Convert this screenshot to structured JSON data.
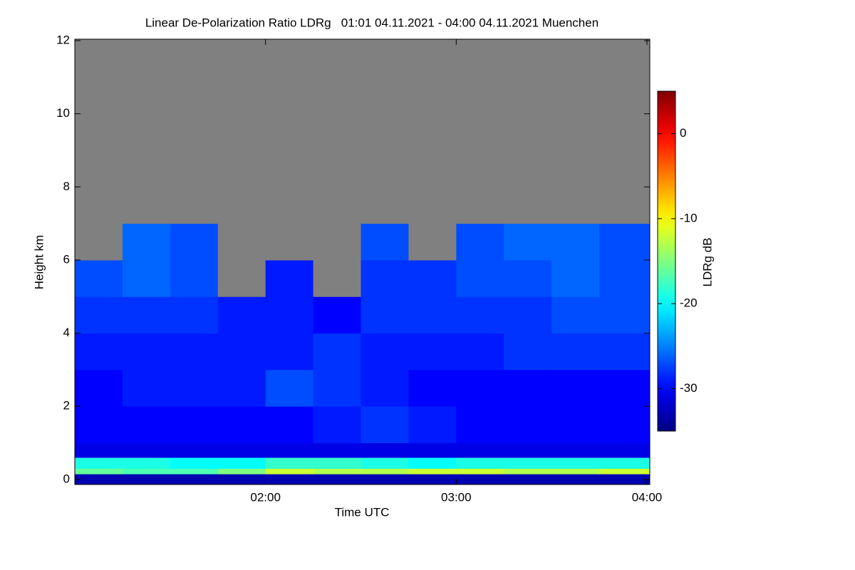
{
  "chart_data": {
    "type": "heatmap",
    "title": "Linear De-Polarization Ratio LDRg   01:01 04.11.2021 - 04:00 04.11.2021 Muenchen",
    "x_label": "Time UTC",
    "y_label": "Height km",
    "colorbar_label": "LDRg dB",
    "colormap": "jet",
    "missing_color": "#808080",
    "xlim": [
      1.0,
      4.015
    ],
    "ylim": [
      -0.14,
      12.04
    ],
    "clim": [
      -35,
      5
    ],
    "xticks": [
      {
        "value": 2,
        "label": "02:00"
      },
      {
        "value": 3,
        "label": "03:00"
      },
      {
        "value": 4,
        "label": "04:00"
      }
    ],
    "yticks": [
      0,
      2,
      4,
      6,
      8,
      10,
      12
    ],
    "cticks": [
      -30,
      -20,
      -10,
      0
    ],
    "x_bins": [
      1.0,
      1.25,
      1.5,
      1.75,
      2.0,
      2.25,
      2.5,
      2.75,
      3.0,
      3.25,
      3.5,
      3.75,
      4.015
    ],
    "y_bins": [
      -0.14,
      0.15,
      0.3,
      0.6,
      1,
      2,
      3,
      4,
      5,
      6,
      7,
      7.5
    ],
    "values": [
      [
        -33,
        -33,
        -33,
        -33,
        -33,
        -33,
        -33,
        -33,
        -33,
        -33,
        -33,
        -33
      ],
      [
        -16,
        -17,
        -17,
        -15,
        -12,
        -13,
        -13,
        -12,
        -12,
        -13,
        -13,
        -12
      ],
      [
        -19,
        -19,
        -20,
        -20,
        -18,
        -18,
        -19,
        -20,
        -19,
        -19,
        -19,
        -19
      ],
      [
        -31,
        -31,
        -31,
        -31,
        -31,
        -31,
        -31,
        -31,
        -31,
        -31,
        -31,
        -31
      ],
      [
        -30,
        -30,
        -30,
        -30,
        -30,
        -29,
        -28,
        -29,
        -30,
        -30,
        -30,
        -30
      ],
      [
        -30,
        -29,
        -29,
        -29,
        -27,
        -28,
        -29,
        -30,
        -30,
        -30,
        -30,
        -30
      ],
      [
        -29,
        -29,
        -29,
        -29,
        -29,
        -28,
        -29,
        -29,
        -29,
        -28,
        -28,
        -28
      ],
      [
        -28,
        -28,
        -28,
        -29,
        -29,
        -30,
        -28,
        -28,
        -28,
        -28,
        -27,
        -27
      ],
      [
        -27,
        -26,
        -27,
        null,
        -29,
        null,
        -28,
        -28,
        -27,
        -27,
        -26,
        -27
      ],
      [
        null,
        -26,
        -27,
        null,
        null,
        null,
        -27,
        null,
        -27,
        -26,
        -26,
        -27
      ],
      [
        null,
        null,
        null,
        null,
        null,
        null,
        null,
        null,
        null,
        null,
        null,
        null
      ]
    ]
  }
}
